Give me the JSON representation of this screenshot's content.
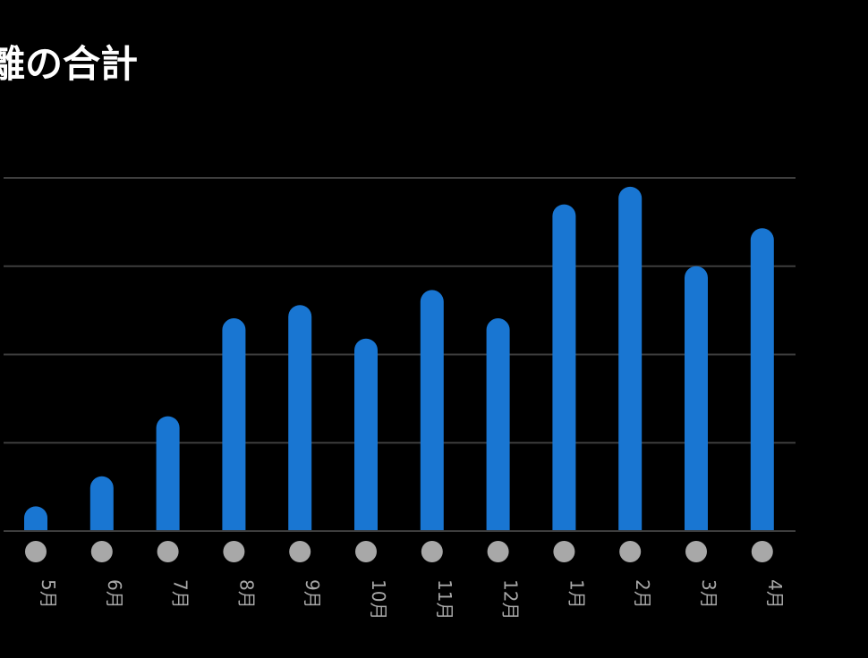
{
  "page": {
    "title": "離の合計"
  },
  "colors": {
    "background": "#000000",
    "bar": "#1976d2",
    "grid": "#3d3d3d",
    "dot": "#a8a8a8",
    "label": "#a8a8a8"
  },
  "chart_data": {
    "type": "bar",
    "title": "離の合計",
    "categories": [
      "5月",
      "6月",
      "7月",
      "8月",
      "9月",
      "10月",
      "11月",
      "12月",
      "1月",
      "2月",
      "3月",
      "4月"
    ],
    "values": [
      0.28,
      0.62,
      1.3,
      2.41,
      2.56,
      2.18,
      2.73,
      2.41,
      3.7,
      3.9,
      3.0,
      3.43
    ],
    "ylim": [
      0,
      4
    ],
    "grid": true,
    "y_tick_labels_visible": false,
    "category_markers": "dot"
  }
}
